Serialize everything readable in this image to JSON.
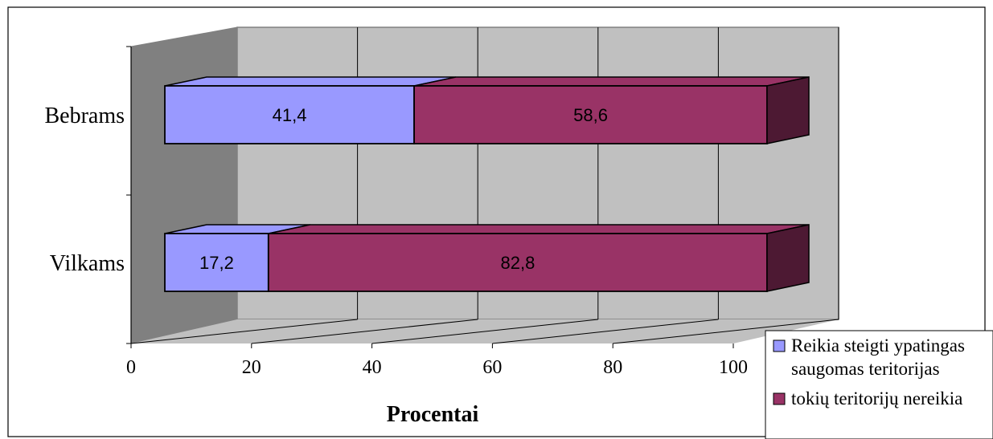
{
  "chart_data": {
    "type": "bar",
    "orientation": "horizontal",
    "stacked": true,
    "three_d": true,
    "categories": [
      "Bebrams",
      "Vilkams"
    ],
    "series": [
      {
        "name": "Reikia steigti ypatingas saugomas teritorijas",
        "values": [
          41.4,
          17.2
        ],
        "labels": [
          "41,4",
          "17,2"
        ],
        "color": "#9999ff",
        "side_color": "#6b6bcc"
      },
      {
        "name": "tokių teritorijų nereikia",
        "values": [
          58.6,
          82.8
        ],
        "labels": [
          "58,6",
          "82,8"
        ],
        "color": "#993366",
        "side_color": "#4d1933"
      }
    ],
    "xlabel": "Procentai",
    "xlim": [
      0,
      100
    ],
    "xticks": [
      "0",
      "20",
      "40",
      "60",
      "80",
      "100"
    ],
    "grid": true,
    "legend_position": "right",
    "legend_lines": [
      [
        "Reikia steigti ypatingas",
        "saugomas teritorijas"
      ],
      [
        "tokių teritorijų nereikia"
      ]
    ],
    "colors": {
      "wall": "#c0c0c0",
      "side_wall": "#808080",
      "floor": "#c0c0c0",
      "grid": "#000000"
    }
  }
}
